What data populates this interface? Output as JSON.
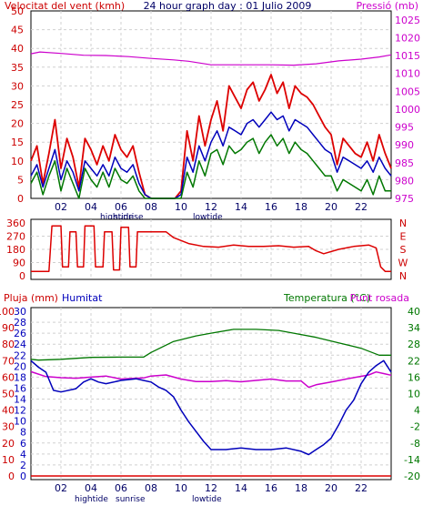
{
  "chart_data": [
    {
      "type": "line",
      "title": "24 hour graph day : 01 Julio 2009",
      "left_label": "Velocitat del vent (kmh)",
      "right_label": "Pressió (mb)",
      "x_ticks": [
        "02",
        "04",
        "06",
        "08",
        "10",
        "12",
        "14",
        "16",
        "18",
        "20",
        "22",
        ""
      ],
      "y_left_ticks": [
        "0",
        "5",
        "10",
        "15",
        "20",
        "25",
        "30",
        "35",
        "40",
        "45",
        "50"
      ],
      "y_right_ticks": [
        "975",
        "980",
        "985",
        "990",
        "995",
        "1000",
        "1005",
        "1010",
        "1015",
        "1020",
        "1025"
      ],
      "ylim_left": [
        0,
        50
      ],
      "ylim_right": [
        975,
        1027.5
      ],
      "annotations": [
        "hightide",
        "sunrise",
        "lowtide"
      ],
      "grid": true,
      "series": [
        {
          "key": "pressure",
          "axis": "right",
          "color": "#cc00cc",
          "x": [
            0,
            0.6,
            2,
            3.5,
            5,
            6.5,
            8,
            9.5,
            10.5,
            12,
            14,
            16,
            17.5,
            19,
            20.5,
            22,
            23.2,
            24
          ],
          "y": [
            1015.5,
            1016,
            1015.6,
            1015.1,
            1015,
            1014.7,
            1014.2,
            1013.8,
            1013.4,
            1012.4,
            1012.4,
            1012.4,
            1012.3,
            1012.7,
            1013.5,
            1014,
            1014.6,
            1015.2
          ]
        },
        {
          "key": "gust",
          "axis": "left",
          "color": "#dd0000",
          "x": [
            0,
            0.4,
            0.8,
            1.2,
            1.6,
            2.0,
            2.4,
            2.8,
            3.2,
            3.6,
            4.0,
            4.4,
            4.8,
            5.2,
            5.6,
            6.0,
            6.4,
            6.8,
            7.2,
            7.6,
            8.0,
            8.4,
            8.8,
            9.2,
            9.6,
            10.0,
            10.4,
            10.8,
            11.2,
            11.6,
            12.0,
            12.4,
            12.8,
            13.2,
            13.6,
            14.0,
            14.4,
            14.8,
            15.2,
            15.6,
            16.0,
            16.4,
            16.8,
            17.2,
            17.6,
            18.0,
            18.4,
            18.8,
            19.2,
            19.6,
            20.0,
            20.4,
            20.8,
            21.2,
            21.6,
            22.0,
            22.4,
            22.8,
            23.2,
            23.6,
            24.0
          ],
          "y": [
            10,
            14,
            4,
            12,
            21,
            8,
            16,
            11,
            3,
            16,
            13,
            9,
            14,
            10,
            17,
            13,
            11,
            14,
            7,
            1,
            0,
            0,
            0,
            0,
            0,
            2,
            18,
            10,
            22,
            14,
            21,
            26,
            18,
            30,
            27,
            24,
            29,
            31,
            26,
            29,
            33,
            28,
            31,
            24,
            30,
            28,
            27,
            25,
            22,
            19,
            17,
            9,
            16,
            14,
            12,
            11,
            15,
            10,
            17,
            12,
            8
          ]
        },
        {
          "key": "avg",
          "axis": "left",
          "color": "#0000bb",
          "x": [
            0,
            0.4,
            0.8,
            1.2,
            1.6,
            2.0,
            2.4,
            2.8,
            3.2,
            3.6,
            4.0,
            4.4,
            4.8,
            5.2,
            5.6,
            6.0,
            6.4,
            6.8,
            7.2,
            7.6,
            8.0,
            8.4,
            8.8,
            9.2,
            9.6,
            10.0,
            10.4,
            10.8,
            11.2,
            11.6,
            12.0,
            12.4,
            12.8,
            13.2,
            13.6,
            14.0,
            14.4,
            14.8,
            15.2,
            15.6,
            16.0,
            16.4,
            16.8,
            17.2,
            17.6,
            18.0,
            18.4,
            18.8,
            19.2,
            19.6,
            20.0,
            20.4,
            20.8,
            21.2,
            21.6,
            22.0,
            22.4,
            22.8,
            23.2,
            23.6,
            24.0
          ],
          "y": [
            6,
            9,
            3,
            8,
            13,
            5,
            10,
            7,
            2,
            10,
            8,
            6,
            9,
            6,
            11,
            8,
            7,
            9,
            4,
            1,
            0,
            0,
            0,
            0,
            0,
            1,
            11,
            7,
            14,
            10,
            15,
            18,
            14,
            19,
            18,
            17,
            20,
            21,
            19,
            21,
            23,
            21,
            22,
            18,
            21,
            20,
            19,
            17,
            15,
            13,
            12,
            7,
            11,
            10,
            9,
            8,
            10,
            7,
            11,
            8,
            6
          ]
        },
        {
          "key": "wind",
          "axis": "left",
          "color": "#007700",
          "x": [
            0,
            0.4,
            0.8,
            1.2,
            1.6,
            2.0,
            2.4,
            2.8,
            3.2,
            3.6,
            4.0,
            4.4,
            4.8,
            5.2,
            5.6,
            6.0,
            6.4,
            6.8,
            7.2,
            7.6,
            8.0,
            8.4,
            8.8,
            9.2,
            9.6,
            10.0,
            10.4,
            10.8,
            11.2,
            11.6,
            12.0,
            12.4,
            12.8,
            13.2,
            13.6,
            14.0,
            14.4,
            14.8,
            15.2,
            15.6,
            16.0,
            16.4,
            16.8,
            17.2,
            17.6,
            18.0,
            18.4,
            18.8,
            19.2,
            19.6,
            20.0,
            20.4,
            20.8,
            21.2,
            21.6,
            22.0,
            22.4,
            22.8,
            23.2,
            23.6,
            24.0
          ],
          "y": [
            4,
            7,
            1,
            6,
            10,
            2,
            8,
            4,
            0,
            8,
            5,
            3,
            7,
            3,
            8,
            5,
            4,
            6,
            2,
            0,
            0,
            0,
            0,
            0,
            0,
            0,
            7,
            3,
            10,
            6,
            12,
            13,
            9,
            14,
            12,
            13,
            15,
            16,
            12,
            15,
            17,
            14,
            16,
            12,
            15,
            13,
            12,
            10,
            8,
            6,
            6,
            2,
            5,
            4,
            3,
            2,
            5,
            1,
            6,
            2,
            2
          ]
        }
      ]
    },
    {
      "type": "line",
      "x_ticks": [],
      "y_left_ticks": [
        "0",
        "90",
        "180",
        "270",
        "360"
      ],
      "y_right_ticks": [
        "N",
        "E",
        "S",
        "W",
        "N"
      ],
      "ylim": [
        0,
        360
      ],
      "grid": true,
      "series": [
        {
          "key": "direction",
          "color": "#dd0000",
          "x": [
            0,
            1.2,
            1.4,
            2.0,
            2.1,
            2.5,
            2.6,
            3.0,
            3.1,
            3.5,
            3.6,
            4.2,
            4.3,
            4.8,
            4.9,
            5.4,
            5.5,
            5.9,
            6.0,
            6.5,
            6.6,
            7.0,
            7.1,
            7.8,
            8.0,
            9.0,
            9.5,
            10.5,
            11.5,
            12.5,
            13.5,
            14.5,
            15.5,
            16.5,
            17.5,
            18.5,
            19.0,
            19.5,
            20.5,
            21.5,
            22.5,
            23.0,
            23.3,
            23.6,
            24.0
          ],
          "y": [
            30,
            30,
            340,
            340,
            60,
            60,
            300,
            300,
            60,
            60,
            340,
            340,
            60,
            60,
            300,
            300,
            40,
            40,
            330,
            330,
            60,
            60,
            300,
            300,
            300,
            300,
            260,
            220,
            200,
            195,
            210,
            200,
            200,
            205,
            195,
            200,
            170,
            150,
            180,
            200,
            210,
            190,
            60,
            30,
            30
          ]
        }
      ]
    },
    {
      "type": "line",
      "rain_label": "Pluja (mm)",
      "humidity_label": "Humitat",
      "temp_label": "Temperatura (°C)",
      "dew_label": "Punt rosada",
      "x_ticks": [
        "02",
        "04",
        "06",
        "08",
        "10",
        "12",
        "14",
        "16",
        "18",
        "20",
        "22",
        ""
      ],
      "y_left_ticks": [
        "0",
        "10",
        "20",
        "30",
        "40",
        "50",
        "60",
        "70",
        "80",
        "90",
        "100"
      ],
      "y_mid_ticks": [
        "0",
        "2",
        "4",
        "6",
        "8",
        "10",
        "12",
        "14",
        "16",
        "18",
        "20",
        "22",
        "24",
        "26",
        "28",
        "30"
      ],
      "y_right_ticks": [
        "-20",
        "-14",
        "-8",
        "-2",
        "4",
        "10",
        "16",
        "22",
        "28",
        "34",
        "40"
      ],
      "ylim_humidity": [
        0,
        100
      ],
      "ylim_rain": [
        0,
        30
      ],
      "ylim_temp": [
        -20,
        40
      ],
      "annotations": [
        "hightide",
        "sunrise",
        "lowtide"
      ],
      "grid": true,
      "series": [
        {
          "key": "rain",
          "axis": "rain",
          "color": "#dd0000",
          "x": [
            0,
            24
          ],
          "y": [
            0,
            0
          ]
        },
        {
          "key": "temperature",
          "axis": "temp",
          "color": "#007700",
          "x": [
            0,
            0.5,
            2,
            4,
            6,
            7.5,
            8,
            9.5,
            11,
            12,
            13.5,
            15,
            16.5,
            17.5,
            19,
            20.5,
            22,
            23.2,
            24
          ],
          "y": [
            22.5,
            22.2,
            22.5,
            23.2,
            23.3,
            23.3,
            25,
            29,
            31,
            32,
            33.4,
            33.4,
            33,
            32,
            30.5,
            28.5,
            26.5,
            24,
            24
          ]
        },
        {
          "key": "dewpoint",
          "axis": "temp",
          "color": "#cc00cc",
          "x": [
            0,
            1,
            2,
            3,
            4,
            5,
            6,
            7,
            7.5,
            8,
            9,
            10,
            11,
            12,
            13,
            14,
            15,
            16,
            17,
            18,
            18.5,
            19,
            20,
            21,
            22,
            22.5,
            23,
            23.5,
            24
          ],
          "y": [
            18,
            16.2,
            15.8,
            15.6,
            16,
            16.4,
            15.3,
            15.6,
            15.7,
            16.4,
            16.8,
            15.3,
            14.4,
            14.4,
            14.7,
            14.3,
            14.8,
            15.3,
            14.6,
            14.6,
            12.3,
            13.2,
            14.2,
            15.3,
            16.3,
            16.8,
            17.9,
            17.3,
            16.7
          ]
        },
        {
          "key": "humidity",
          "axis": "humidity",
          "color": "#0000bb",
          "x": [
            0,
            0.5,
            1,
            1.5,
            2,
            3,
            3.5,
            4,
            4.5,
            5,
            6,
            7,
            7.5,
            8,
            8.5,
            9,
            9.5,
            10,
            10.5,
            11,
            11.5,
            12,
            13,
            14,
            15,
            16,
            17,
            18,
            18.5,
            19,
            19.5,
            20,
            20.5,
            21,
            21.5,
            22,
            22.5,
            23,
            23.5,
            24
          ],
          "y": [
            70,
            66,
            63,
            52,
            51,
            53,
            57,
            59,
            57,
            56,
            58,
            59,
            58,
            57,
            54,
            52,
            48,
            40,
            33,
            27,
            21,
            16,
            16,
            17,
            16,
            16,
            17,
            15,
            13,
            16,
            19,
            23,
            31,
            40,
            46,
            56,
            63,
            67,
            70,
            63
          ]
        }
      ]
    }
  ]
}
